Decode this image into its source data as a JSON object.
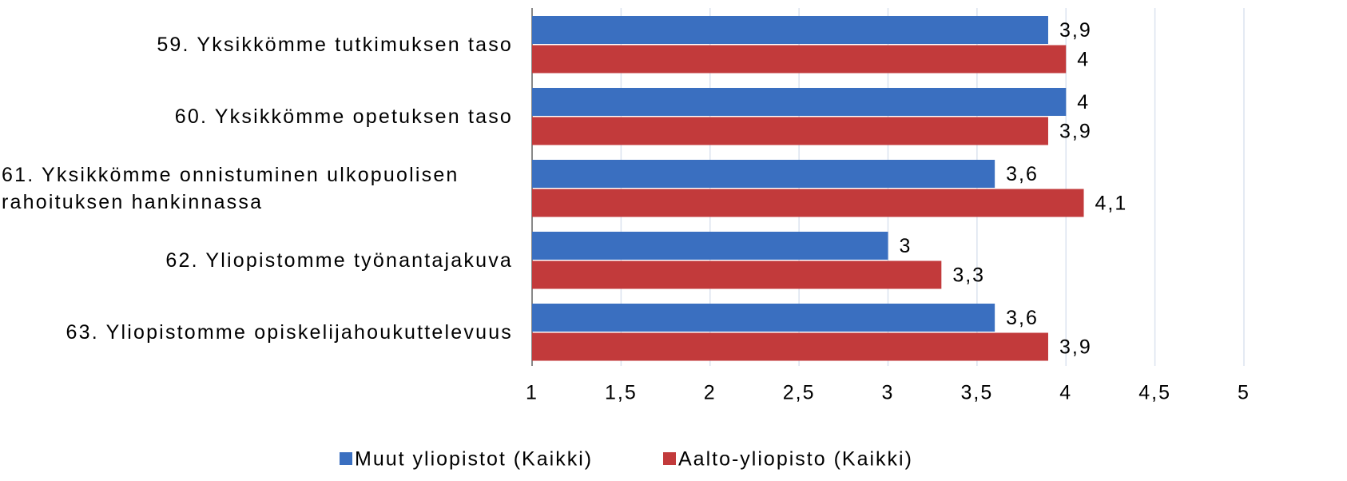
{
  "chart_data": {
    "type": "bar",
    "orientation": "horizontal",
    "categories": [
      "59. Yksikkömme tutkimuksen taso",
      "60. Yksikkömme opetuksen taso",
      "61. Yksikkömme onnistuminen ulkopuolisen rahoituksen hankinnassa",
      "62. Yliopistomme työnantajakuva",
      "63. Yliopistomme opiskelijahoukuttelevuus"
    ],
    "series": [
      {
        "name": "Muut yliopistot (Kaikki)",
        "color": "#3a6fc0",
        "values": [
          3.9,
          4,
          3.6,
          3,
          3.6
        ],
        "value_labels": [
          "3,9",
          "4",
          "3,6",
          "3",
          "3,6"
        ]
      },
      {
        "name": "Aalto-yliopisto (Kaikki)",
        "color": "#c23a3b",
        "values": [
          4,
          3.9,
          4.1,
          3.3,
          3.9
        ],
        "value_labels": [
          "4",
          "3,9",
          "4,1",
          "3,3",
          "3,9"
        ]
      }
    ],
    "xlim": [
      1,
      5
    ],
    "xticks": [
      1,
      {
        "value": 1.5,
        "label": "1,5"
      },
      2,
      {
        "value": 2.5,
        "label": "2,5"
      },
      3,
      {
        "value": 3.5,
        "label": "3,5"
      },
      4,
      {
        "value": 4.5,
        "label": "4,5"
      },
      5
    ],
    "grid": true,
    "legend": "bottom"
  }
}
